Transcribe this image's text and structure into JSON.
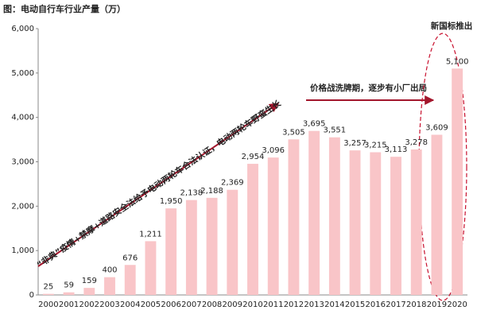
{
  "chart_data": {
    "type": "bar",
    "title": "图：电动自行车行业产量（万）",
    "categories": [
      "2000",
      "2001",
      "2002",
      "2003",
      "2004",
      "2005",
      "2006",
      "2007",
      "2008",
      "2009",
      "2010",
      "2011",
      "2012",
      "2013",
      "2014",
      "2015",
      "2016",
      "2017",
      "2018",
      "2019",
      "2020"
    ],
    "values": [
      25,
      59,
      159,
      400,
      676,
      1211,
      1950,
      2138,
      2188,
      2369,
      2954,
      3096,
      3505,
      3695,
      3551,
      3257,
      3215,
      3113,
      3278,
      3609,
      5100
    ],
    "value_labels": [
      "25",
      "59",
      "159",
      "400",
      "676",
      "1,211",
      "1,950",
      "2,138",
      "2,188",
      "2,369",
      "2,954",
      "3,096",
      "3,505",
      "3,695",
      "3,551",
      "3,257",
      "3,215",
      "3,113",
      "3,278",
      "3,609",
      "5,100"
    ],
    "color": "#f9c5c8",
    "ylim": [
      0,
      6000
    ],
    "yticks": [
      0,
      {
        "value": 1000,
        "label": "1,000"
      },
      {
        "value": 2000,
        "label": "2,000"
      },
      {
        "value": 3000,
        "label": "3,000"
      },
      {
        "value": 4000,
        "label": "4,000"
      },
      {
        "value": 5000,
        "label": "5,000"
      },
      {
        "value": 6000,
        "label": "6,000"
      }
    ],
    "annotations": [
      "“非典”疫情+禁摩+道路安全法给予电动两轮车合法认证，电动两轮车野蛮生长",
      "价格战洗牌期，逐步有小厂出局",
      "新国标推出"
    ]
  }
}
